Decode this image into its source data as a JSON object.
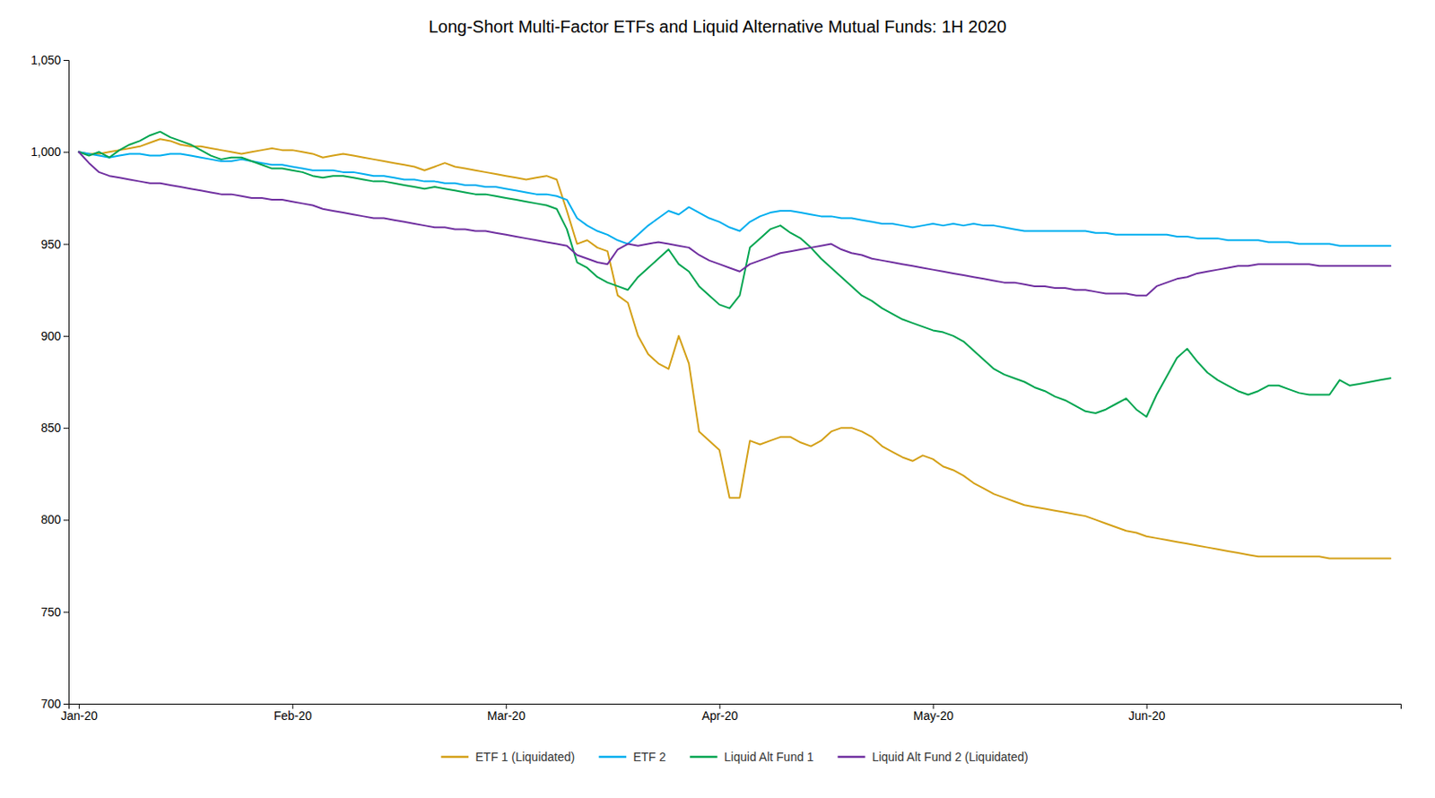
{
  "chart_data": {
    "type": "line",
    "title": "Long-Short Multi-Factor ETFs and Liquid Alternative Mutual Funds: 1H 2020",
    "categories": [
      "Jan-20",
      null,
      null,
      null,
      null,
      null,
      null,
      null,
      null,
      null,
      null,
      null,
      null,
      null,
      null,
      null,
      null,
      null,
      null,
      null,
      null,
      "Feb-20",
      null,
      null,
      null,
      null,
      null,
      null,
      null,
      null,
      null,
      null,
      null,
      null,
      null,
      null,
      null,
      null,
      null,
      null,
      null,
      null,
      "Mar-20",
      null,
      null,
      null,
      null,
      null,
      null,
      null,
      null,
      null,
      null,
      null,
      null,
      null,
      null,
      null,
      null,
      null,
      null,
      null,
      null,
      "Apr-20",
      null,
      null,
      null,
      null,
      null,
      null,
      null,
      null,
      null,
      null,
      null,
      null,
      null,
      null,
      null,
      null,
      null,
      null,
      null,
      null,
      "May-20",
      null,
      null,
      null,
      null,
      null,
      null,
      null,
      null,
      null,
      null,
      null,
      null,
      null,
      null,
      null,
      null,
      null,
      null,
      null,
      null,
      "Jun-20",
      null,
      null,
      null,
      null,
      null,
      null,
      null,
      null,
      null,
      null,
      null,
      null,
      null,
      null,
      null,
      null,
      null,
      null,
      null,
      null,
      null,
      null,
      null,
      null
    ],
    "ylim": [
      700,
      1050
    ],
    "yticks": [
      700,
      750,
      800,
      850,
      900,
      950,
      {
        "value": 1000,
        "label": "1,000"
      },
      {
        "value": 1050,
        "label": "1,050"
      }
    ],
    "grid": false,
    "legend": "bottom",
    "series": [
      {
        "name": "ETF 1 (Liquidated)",
        "color": "#D4A017",
        "values": [
          1000,
          999,
          999,
          1000,
          1001,
          1002,
          1003,
          1005,
          1007,
          1006,
          1004,
          1003,
          1003,
          1002,
          1001,
          1000,
          999,
          1000,
          1001,
          1002,
          1001,
          1001,
          1000,
          999,
          997,
          998,
          999,
          998,
          997,
          996,
          995,
          994,
          993,
          992,
          990,
          992,
          994,
          992,
          991,
          990,
          989,
          988,
          987,
          986,
          985,
          986,
          987,
          985,
          968,
          950,
          952,
          948,
          946,
          922,
          918,
          900,
          890,
          885,
          882,
          900,
          885,
          848,
          843,
          838,
          812,
          812,
          843,
          841,
          843,
          845,
          845,
          842,
          840,
          843,
          848,
          850,
          850,
          848,
          845,
          840,
          837,
          834,
          832,
          835,
          833,
          829,
          827,
          824,
          820,
          817,
          814,
          812,
          810,
          808,
          807,
          806,
          805,
          804,
          803,
          802,
          800,
          798,
          796,
          794,
          793,
          791,
          790,
          789,
          788,
          787,
          786,
          785,
          784,
          783,
          782,
          781,
          780,
          780,
          780,
          780,
          780,
          780,
          780,
          779,
          779,
          779,
          779,
          779,
          779,
          779
        ]
      },
      {
        "name": "ETF 2",
        "color": "#00AEEF",
        "values": [
          1000,
          999,
          998,
          997,
          998,
          999,
          999,
          998,
          998,
          999,
          999,
          998,
          997,
          996,
          995,
          995,
          996,
          995,
          994,
          993,
          993,
          992,
          991,
          990,
          990,
          990,
          989,
          989,
          988,
          987,
          987,
          986,
          985,
          985,
          984,
          984,
          983,
          983,
          982,
          982,
          981,
          981,
          980,
          979,
          978,
          977,
          977,
          976,
          974,
          964,
          960,
          957,
          955,
          952,
          950,
          955,
          960,
          964,
          968,
          966,
          970,
          967,
          964,
          962,
          959,
          957,
          962,
          965,
          967,
          968,
          968,
          967,
          966,
          965,
          965,
          964,
          964,
          963,
          962,
          961,
          961,
          960,
          959,
          960,
          961,
          960,
          961,
          960,
          961,
          960,
          960,
          959,
          958,
          957,
          957,
          957,
          957,
          957,
          957,
          957,
          956,
          956,
          955,
          955,
          955,
          955,
          955,
          955,
          954,
          954,
          953,
          953,
          953,
          952,
          952,
          952,
          952,
          951,
          951,
          951,
          950,
          950,
          950,
          950,
          949,
          949,
          949,
          949,
          949,
          949
        ]
      },
      {
        "name": "Liquid Alt Fund 1",
        "color": "#00A550",
        "values": [
          1000,
          998,
          1000,
          997,
          1001,
          1004,
          1006,
          1009,
          1011,
          1008,
          1006,
          1004,
          1001,
          998,
          996,
          997,
          997,
          995,
          993,
          991,
          991,
          990,
          989,
          987,
          986,
          987,
          987,
          986,
          985,
          984,
          984,
          983,
          982,
          981,
          980,
          981,
          980,
          979,
          978,
          977,
          977,
          976,
          975,
          974,
          973,
          972,
          971,
          969,
          958,
          940,
          937,
          932,
          929,
          927,
          925,
          932,
          937,
          942,
          947,
          939,
          935,
          927,
          922,
          917,
          915,
          922,
          948,
          953,
          958,
          960,
          956,
          953,
          948,
          942,
          937,
          932,
          927,
          922,
          919,
          915,
          912,
          909,
          907,
          905,
          903,
          902,
          900,
          897,
          892,
          887,
          882,
          879,
          877,
          875,
          872,
          870,
          867,
          865,
          862,
          859,
          858,
          860,
          863,
          866,
          860,
          856,
          868,
          878,
          888,
          893,
          886,
          880,
          876,
          873,
          870,
          868,
          870,
          873,
          873,
          871,
          869,
          868,
          868,
          868,
          876,
          873,
          874,
          875,
          876,
          877
        ]
      },
      {
        "name": "Liquid Alt Fund 2 (Liquidated)",
        "color": "#7030A0",
        "values": [
          1000,
          994,
          989,
          987,
          986,
          985,
          984,
          983,
          983,
          982,
          981,
          980,
          979,
          978,
          977,
          977,
          976,
          975,
          975,
          974,
          974,
          973,
          972,
          971,
          969,
          968,
          967,
          966,
          965,
          964,
          964,
          963,
          962,
          961,
          960,
          959,
          959,
          958,
          958,
          957,
          957,
          956,
          955,
          954,
          953,
          952,
          951,
          950,
          949,
          944,
          942,
          940,
          939,
          947,
          950,
          949,
          950,
          951,
          950,
          949,
          948,
          944,
          941,
          939,
          937,
          935,
          939,
          941,
          943,
          945,
          946,
          947,
          948,
          949,
          950,
          947,
          945,
          944,
          942,
          941,
          940,
          939,
          938,
          937,
          936,
          935,
          934,
          933,
          932,
          931,
          930,
          929,
          929,
          928,
          927,
          927,
          926,
          926,
          925,
          925,
          924,
          923,
          923,
          923,
          922,
          922,
          927,
          929,
          931,
          932,
          934,
          935,
          936,
          937,
          938,
          938,
          939,
          939,
          939,
          939,
          939,
          939,
          938,
          938,
          938,
          938,
          938,
          938,
          938,
          938
        ]
      }
    ]
  }
}
